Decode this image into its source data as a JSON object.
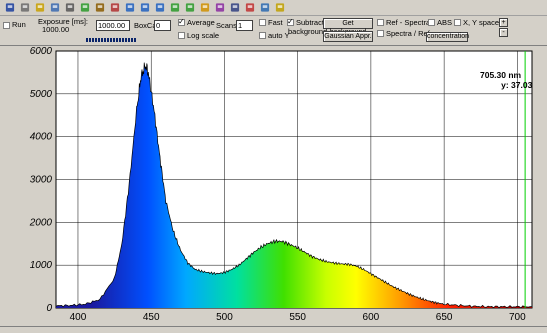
{
  "toolbar": {
    "icons": [
      "save-icon",
      "disk-icon",
      "open-folder-icon",
      "copy-icon",
      "print-icon",
      "green-arrows-icon",
      "wand-icon",
      "export-icon",
      "horizontal-zoom-icon",
      "vertical-zoom-icon",
      "pan-icon",
      "fit-icon",
      "up-down-icon",
      "folder-icon",
      "spectrum-icon",
      "camera-icon",
      "flag-icon",
      "grid-icon",
      "help-icon"
    ]
  },
  "controls": {
    "run_label": "Run",
    "exposure_label": "Exposure [ms]:",
    "exposure_sub": "1000.00",
    "exposure_value": "1000.00",
    "boxcar_label": "BoxCar:",
    "boxcar_value": "0",
    "average_label": "Average",
    "log_scale_label": "Log scale",
    "scans_label": "Scans:",
    "scans_value": "1",
    "fast_label": "Fast",
    "auto_y_label": "auto Y",
    "subtract_label": "Subtract",
    "background_label": "background",
    "get_background_label": "Get background",
    "gaussian_label": "Gaussian Appr.",
    "ref_spectra_label": "Ref - Spectra",
    "spectra_ref_label": "Spectra / Ref",
    "abs_label": "ABS",
    "concentration_label": "concentration",
    "xy_space_label": "X, Y space",
    "plus_label": "+",
    "minus_label": "-"
  },
  "chart_data": {
    "type": "line",
    "title": "",
    "xlabel": "",
    "ylabel": "",
    "xlim": [
      385,
      710
    ],
    "ylim": [
      0,
      6000
    ],
    "x_ticks": [
      400,
      450,
      500,
      550,
      600,
      650,
      700
    ],
    "y_ticks": [
      0,
      1000,
      2000,
      3000,
      4000,
      5000,
      6000
    ],
    "grid": true,
    "fill": "rainbow-gradient",
    "cursor": {
      "x": 705.3,
      "label_x": "705.30 nm",
      "label_y": "y: 37.03"
    },
    "x": [
      385,
      395,
      405,
      415,
      425,
      430,
      435,
      440,
      443,
      446,
      448,
      452,
      456,
      460,
      465,
      470,
      475,
      480,
      485,
      490,
      495,
      500,
      505,
      510,
      515,
      520,
      525,
      530,
      535,
      540,
      545,
      550,
      555,
      560,
      565,
      570,
      575,
      580,
      585,
      590,
      595,
      600,
      605,
      610,
      615,
      620,
      625,
      630,
      635,
      640,
      645,
      650,
      660,
      670,
      680,
      690,
      700,
      710
    ],
    "y": [
      50,
      60,
      90,
      200,
      700,
      1500,
      2900,
      4600,
      5400,
      5650,
      5500,
      4600,
      3500,
      2500,
      1800,
      1350,
      1050,
      900,
      850,
      820,
      800,
      830,
      900,
      1000,
      1150,
      1300,
      1420,
      1510,
      1560,
      1550,
      1480,
      1400,
      1300,
      1200,
      1130,
      1080,
      1050,
      1030,
      1020,
      980,
      900,
      800,
      700,
      600,
      500,
      420,
      340,
      270,
      210,
      160,
      120,
      90,
      60,
      40,
      30,
      30,
      30,
      30
    ]
  }
}
